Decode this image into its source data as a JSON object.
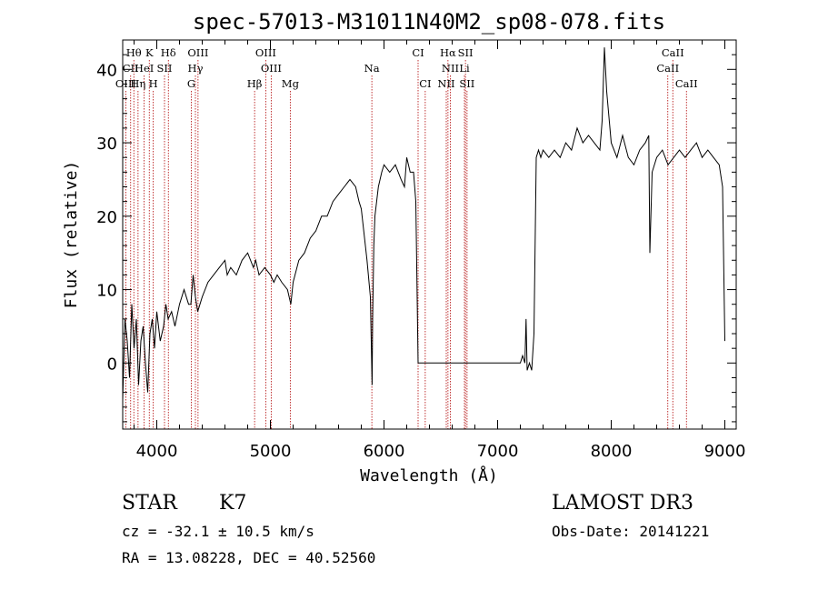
{
  "chart_data": {
    "type": "line",
    "title": "spec-57013-M31011N40M2_sp08-078.fits",
    "xlabel": "Wavelength (Å)",
    "ylabel": "Flux (relative)",
    "xlim": [
      3700,
      9100
    ],
    "ylim": [
      -9,
      44
    ],
    "xticks": [
      4000,
      5000,
      6000,
      7000,
      8000,
      9000
    ],
    "yticks": [
      0,
      10,
      20,
      30,
      40
    ],
    "series": [
      {
        "name": "spectrum",
        "x": [
          3700,
          3720,
          3740,
          3760,
          3780,
          3800,
          3820,
          3840,
          3860,
          3880,
          3900,
          3920,
          3940,
          3960,
          3980,
          4000,
          4030,
          4060,
          4080,
          4100,
          4130,
          4160,
          4200,
          4240,
          4280,
          4300,
          4320,
          4340,
          4360,
          4400,
          4450,
          4500,
          4550,
          4600,
          4620,
          4650,
          4700,
          4750,
          4800,
          4850,
          4870,
          4900,
          4950,
          5000,
          5030,
          5060,
          5100,
          5150,
          5180,
          5200,
          5250,
          5300,
          5350,
          5400,
          5450,
          5500,
          5550,
          5600,
          5650,
          5700,
          5750,
          5780,
          5800,
          5850,
          5880,
          5895,
          5900,
          5910,
          5920,
          5950,
          5980,
          6000,
          6050,
          6100,
          6150,
          6180,
          6200,
          6230,
          6260,
          6280,
          6300,
          6500,
          6700,
          7000,
          7200,
          7220,
          7240,
          7250,
          7260,
          7280,
          7300,
          7320,
          7340,
          7360,
          7380,
          7400,
          7450,
          7500,
          7550,
          7600,
          7650,
          7700,
          7750,
          7800,
          7850,
          7900,
          7920,
          7940,
          7960,
          8000,
          8050,
          8100,
          8150,
          8200,
          8250,
          8300,
          8330,
          8340,
          8360,
          8400,
          8450,
          8500,
          8550,
          8600,
          8650,
          8700,
          8750,
          8800,
          8850,
          8900,
          8950,
          8980,
          9000
        ],
        "y": [
          -5,
          6,
          3,
          -2,
          8,
          2,
          6,
          -3,
          3,
          5,
          0,
          -4,
          4,
          6,
          2,
          7,
          3,
          5,
          8,
          6,
          7,
          5,
          8,
          10,
          8,
          8,
          12,
          9,
          7,
          9,
          11,
          12,
          13,
          14,
          12,
          13,
          12,
          14,
          15,
          13,
          14,
          12,
          13,
          12,
          11,
          12,
          11,
          10,
          8,
          11,
          14,
          15,
          17,
          18,
          20,
          20,
          22,
          23,
          24,
          25,
          24,
          22,
          21,
          14,
          9,
          -3,
          6,
          16,
          20,
          24,
          26,
          27,
          26,
          27,
          25,
          24,
          28,
          26,
          26,
          22,
          0,
          0,
          0,
          0,
          0,
          1,
          0,
          6,
          -1,
          0,
          -1,
          4,
          28,
          29,
          28,
          29,
          28,
          29,
          28,
          30,
          29,
          32,
          30,
          31,
          30,
          29,
          33,
          43,
          37,
          30,
          28,
          31,
          28,
          27,
          29,
          30,
          31,
          15,
          26,
          28,
          29,
          27,
          28,
          29,
          28,
          29,
          30,
          28,
          29,
          28,
          27,
          24,
          3
        ]
      }
    ],
    "lines": [
      {
        "label": "Hθ",
        "row": 0,
        "x": 3798
      },
      {
        "label": "K",
        "row": 0,
        "x": 3934
      },
      {
        "label": "Hδ",
        "row": 0,
        "x": 4102
      },
      {
        "label": "OIII",
        "row": 0,
        "x": 4363
      },
      {
        "label": "OIII",
        "row": 0,
        "x": 4959
      },
      {
        "label": "CI",
        "row": 0,
        "x": 6300
      },
      {
        "label": "Hα",
        "row": 0,
        "x": 6563
      },
      {
        "label": "SII",
        "row": 0,
        "x": 6717
      },
      {
        "label": "CaII",
        "row": 0,
        "x": 8542
      },
      {
        "label": "CII",
        "row": 1,
        "x": 3770
      },
      {
        "label": "HeI",
        "row": 1,
        "x": 3889
      },
      {
        "label": "SII",
        "row": 1,
        "x": 4068
      },
      {
        "label": "Hγ",
        "row": 1,
        "x": 4340
      },
      {
        "label": "OIII",
        "row": 1,
        "x": 5007
      },
      {
        "label": "Na",
        "row": 1,
        "x": 5893
      },
      {
        "label": "NII",
        "row": 1,
        "x": 6584
      },
      {
        "label": "Li",
        "row": 1,
        "x": 6708
      },
      {
        "label": "CaII",
        "row": 1,
        "x": 8498
      },
      {
        "label": "OIII",
        "row": 2,
        "x": 3727
      },
      {
        "label": "Hη",
        "row": 2,
        "x": 3835
      },
      {
        "label": "H",
        "row": 2,
        "x": 3969
      },
      {
        "label": "G",
        "row": 2,
        "x": 4304
      },
      {
        "label": "Hβ",
        "row": 2,
        "x": 4861
      },
      {
        "label": "Mg",
        "row": 2,
        "x": 5175
      },
      {
        "label": "CI",
        "row": 2,
        "x": 6363
      },
      {
        "label": "NII",
        "row": 2,
        "x": 6548
      },
      {
        "label": "SII",
        "row": 2,
        "x": 6731
      },
      {
        "label": "CaII",
        "row": 2,
        "x": 8662
      }
    ]
  },
  "info": {
    "class": "STAR",
    "subclass": "K7",
    "survey": "LAMOST DR3",
    "cz": "cz = -32.1 ± 10.5 km/s",
    "obs_date": "Obs-Date: 20141221",
    "radec": "RA =  13.08228, DEC =  40.52560"
  },
  "colors": {
    "axis": "#000000",
    "line_markers": "#b00000",
    "spectrum": "#000000"
  }
}
